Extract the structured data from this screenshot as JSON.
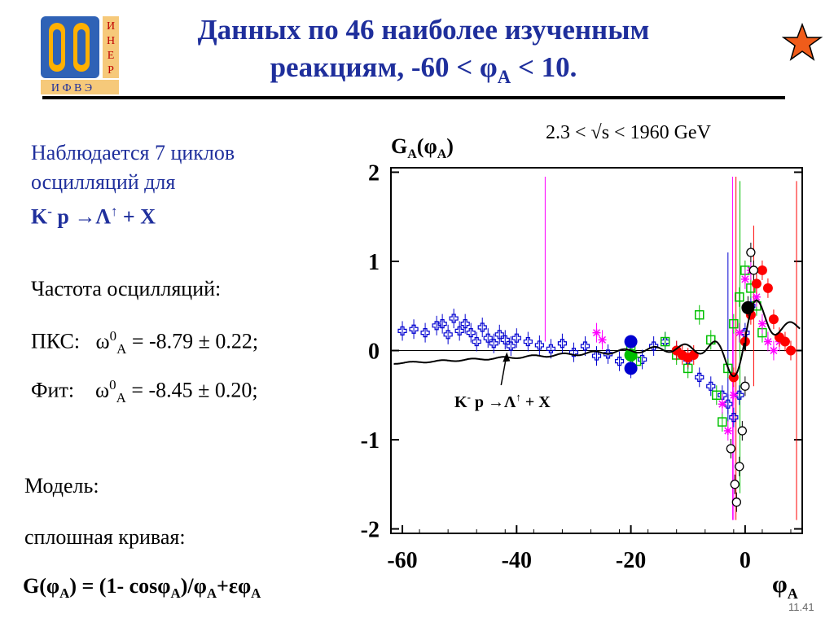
{
  "slide": {
    "title_line1": "Данных по 46 наиболее изученным",
    "title_line2_pre": "реакциям,  -60 < φ",
    "title_line2_sub": "A",
    "title_line2_post": " < 10.",
    "logo": {
      "letters_right": [
        "И",
        "Н",
        "Е",
        "Р"
      ],
      "letters_bottom": "И Ф В Э",
      "colors": {
        "outer": "#2f62b6",
        "inner": "#ffb000",
        "bottom_bar": "#f6c97a",
        "right_bar": "#f6c97a"
      }
    },
    "star_icon": "star-icon",
    "star_color": "#f05c1a",
    "page_number": "11.41"
  },
  "left": {
    "obs_line1": "Наблюдается 7 циклов",
    "obs_line2": "осцилляций для",
    "reaction_a": "K",
    "reaction_a_sup": "-",
    "reaction_b": " p →Λ",
    "reaction_b_sup": "↑",
    "reaction_c": " + X",
    "freq_label": "Частота осцилляций:",
    "pks_label": "ПКС:",
    "pks_omega": "ω",
    "pks_sup": "0",
    "pks_sub": "A",
    "pks_value": " = -8.79 ± 0.22;",
    "fit_label": "Фит:",
    "fit_omega": "ω",
    "fit_sup": "0",
    "fit_sub": "A",
    "fit_value": " = -8.45 ± 0.20;",
    "model_label": "Модель:",
    "curve_label": "сплошная кривая:",
    "formula_a": "G(φ",
    "formula_a_sub": "A",
    "formula_b": ") = (1- cosφ",
    "formula_b_sub": "A",
    "formula_c": ")/φ",
    "formula_c_sub": "A",
    "formula_d": "+εφ",
    "formula_d_sub": "A"
  },
  "chart_data": {
    "type": "scatter",
    "ylabel_main": "G",
    "ylabel_sub1": "A",
    "ylabel_mid": "(φ",
    "ylabel_sub2": "A",
    "ylabel_end": ")",
    "xlabel_main": "φ",
    "xlabel_sub": "A",
    "energy_range": "2.3 < √s < 1960 GeV",
    "annotation_a": "K",
    "annotation_sup": "-",
    "annotation_b": " p →Λ",
    "annotation_sup2": "↑",
    "annotation_c": " + X",
    "xlim": [
      -62,
      10
    ],
    "ylim": [
      -2.05,
      2.05
    ],
    "x_ticks": [
      -60,
      -40,
      -20,
      0
    ],
    "y_ticks": [
      -2,
      -1,
      0,
      1,
      2
    ],
    "x_tick_labels": [
      "-60",
      "-40",
      "-20",
      "0"
    ],
    "y_tick_labels": [
      "-2",
      "-1",
      "0",
      "1",
      "2"
    ],
    "annotation_arrow_x": -42,
    "model_curve": {
      "epsilon": 0.0045,
      "omega": 8.45,
      "color": "#000000"
    },
    "series": [
      {
        "color": "#0000d0",
        "marker": "cross",
        "points": [
          [
            -60,
            0.22
          ],
          [
            -58,
            0.24
          ],
          [
            -56,
            0.2
          ],
          [
            -54,
            0.28
          ],
          [
            -53,
            0.3
          ],
          [
            -52,
            0.18
          ],
          [
            -51,
            0.36
          ],
          [
            -50,
            0.22
          ],
          [
            -49,
            0.3
          ],
          [
            -48,
            0.2
          ],
          [
            -47,
            0.1
          ],
          [
            -46,
            0.26
          ],
          [
            -45,
            0.14
          ],
          [
            -44,
            0.08
          ],
          [
            -43,
            0.18
          ],
          [
            -42,
            0.12
          ],
          [
            -41,
            0.05
          ],
          [
            -40,
            0.14
          ],
          [
            -38,
            0.1
          ],
          [
            -36,
            0.06
          ],
          [
            -34,
            0.02
          ],
          [
            -32,
            0.08
          ],
          [
            -30,
            -0.02
          ],
          [
            -28,
            0.05
          ],
          [
            -26,
            -0.06
          ],
          [
            -24,
            -0.04
          ],
          [
            -22,
            -0.12
          ],
          [
            -20,
            -0.2
          ],
          [
            -18,
            -0.1
          ],
          [
            -16,
            0.05
          ],
          [
            -14,
            0.1
          ],
          [
            -12,
            0.0
          ],
          [
            -10,
            -0.1
          ],
          [
            -8,
            -0.3
          ],
          [
            -6,
            -0.4
          ],
          [
            -4,
            -0.5
          ],
          [
            -3,
            -0.6
          ],
          [
            -2,
            -0.75
          ],
          [
            -1,
            -0.5
          ],
          [
            0,
            0.2
          ],
          [
            1,
            0.5
          ]
        ]
      },
      {
        "color": "#00c000",
        "marker": "square",
        "points": [
          [
            -20,
            0.05
          ],
          [
            -19,
            -0.12
          ],
          [
            -14,
            0.1
          ],
          [
            -12,
            -0.05
          ],
          [
            -10,
            -0.2
          ],
          [
            -8,
            0.4
          ],
          [
            -6,
            0.12
          ],
          [
            -5,
            -0.5
          ],
          [
            -4,
            -0.8
          ],
          [
            -3,
            -0.2
          ],
          [
            -2,
            0.3
          ],
          [
            -1,
            0.6
          ],
          [
            0,
            0.9
          ],
          [
            1,
            0.7
          ],
          [
            2,
            0.5
          ],
          [
            3,
            0.2
          ]
        ]
      },
      {
        "color": "#ff00ff",
        "marker": "star",
        "points": [
          [
            -26,
            0.2
          ],
          [
            -25,
            0.12
          ],
          [
            -4,
            -0.6
          ],
          [
            -3,
            -0.9
          ],
          [
            -2,
            -0.5
          ],
          [
            -1,
            0.2
          ],
          [
            0,
            0.8
          ],
          [
            1,
            0.9
          ],
          [
            2,
            0.6
          ],
          [
            3,
            0.3
          ],
          [
            4,
            0.1
          ],
          [
            5,
            0.0
          ],
          [
            6,
            0.1
          ]
        ]
      },
      {
        "color": "#ff0000",
        "marker": "circle",
        "points": [
          [
            -12,
            0.0
          ],
          [
            -11,
            -0.05
          ],
          [
            -10,
            -0.08
          ],
          [
            -9,
            -0.05
          ],
          [
            -2,
            -0.3
          ],
          [
            0,
            0.1
          ],
          [
            1,
            0.4
          ],
          [
            2,
            0.75
          ],
          [
            3,
            0.9
          ],
          [
            4,
            0.7
          ],
          [
            5,
            0.35
          ],
          [
            6,
            0.15
          ],
          [
            7,
            0.1
          ],
          [
            8,
            0.0
          ]
        ]
      },
      {
        "color": "#000000",
        "marker": "open-circle",
        "points": [
          [
            -2.5,
            -1.1
          ],
          [
            -1.8,
            -1.5
          ],
          [
            -1.5,
            -1.7
          ],
          [
            -1.0,
            -1.3
          ],
          [
            -0.5,
            -0.9
          ],
          [
            0,
            -0.4
          ],
          [
            0.5,
            0.5
          ],
          [
            1,
            1.1
          ],
          [
            1.5,
            0.9
          ]
        ]
      }
    ],
    "filled_markers": [
      {
        "x": -20,
        "y": 0.1,
        "color": "#0000d0"
      },
      {
        "x": -20,
        "y": -0.2,
        "color": "#0000d0"
      },
      {
        "x": -20,
        "y": -0.05,
        "color": "#00c000"
      },
      {
        "x": 0.5,
        "y": 0.48,
        "color": "#000000"
      }
    ]
  }
}
